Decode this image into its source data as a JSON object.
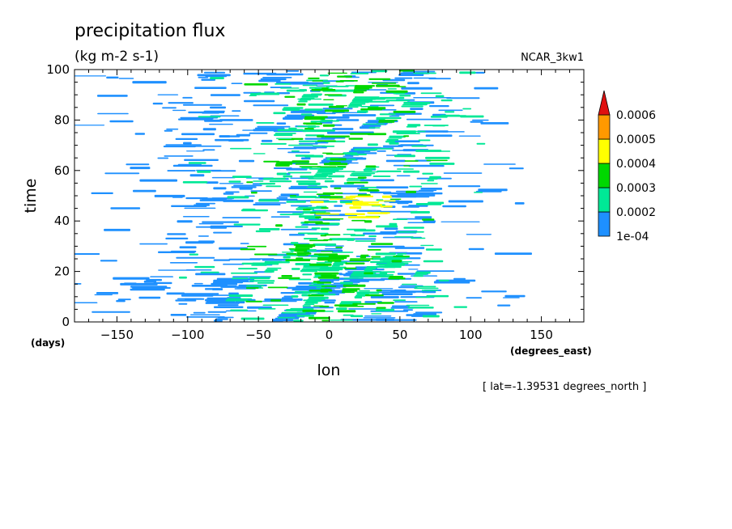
{
  "chart_data": {
    "type": "heatmap",
    "title": "precipitation flux",
    "units_label": "(kg m-2 s-1)",
    "model": "NCAR_3kw1",
    "xlabel": "lon",
    "ylabel": "time",
    "x_units": "(degrees_east)",
    "y_units": "(days)",
    "note": "[ lat=-1.39531 degrees_north ]",
    "xlim": [
      -180,
      180
    ],
    "ylim": [
      0,
      100
    ],
    "x_ticks": [
      -150,
      -100,
      -50,
      0,
      50,
      100,
      150
    ],
    "x_tick_labels": [
      "−150",
      "−100",
      "−50",
      "0",
      "50",
      "100",
      "150"
    ],
    "y_ticks": [
      0,
      20,
      40,
      60,
      80,
      100
    ],
    "y_tick_labels": [
      "0",
      "20",
      "40",
      "60",
      "80",
      "100"
    ],
    "grid": false,
    "colorbar": {
      "placement": "right",
      "levels": [
        0.0001,
        0.0002,
        0.0003,
        0.0004,
        0.0005,
        0.0006
      ],
      "level_labels": [
        "1e-04",
        "0.0002",
        "0.0003",
        "0.0004",
        "0.0005",
        "0.0006"
      ],
      "colors": [
        "#1e90ff",
        "#00e896",
        "#00d800",
        "#ffff00",
        "#ff9900",
        "#e01010"
      ],
      "extend": "max"
    },
    "field_description_regions": [
      {
        "lon_range": [
          -130,
          100
        ],
        "time_range": [
          0,
          100
        ],
        "typical_level": 0.0001,
        "color_index": 0
      },
      {
        "lon_range": [
          -60,
          80
        ],
        "time_range": [
          0,
          100
        ],
        "typical_level": 0.0002,
        "color_index": 1
      },
      {
        "lon_range": [
          -40,
          50
        ],
        "time_range": [
          0,
          100
        ],
        "typical_level": 0.0003,
        "color_index": 2
      },
      {
        "lon_range": [
          0,
          40
        ],
        "time_range": [
          40,
          50
        ],
        "typical_level": 0.0004,
        "color_index": 3
      }
    ]
  }
}
